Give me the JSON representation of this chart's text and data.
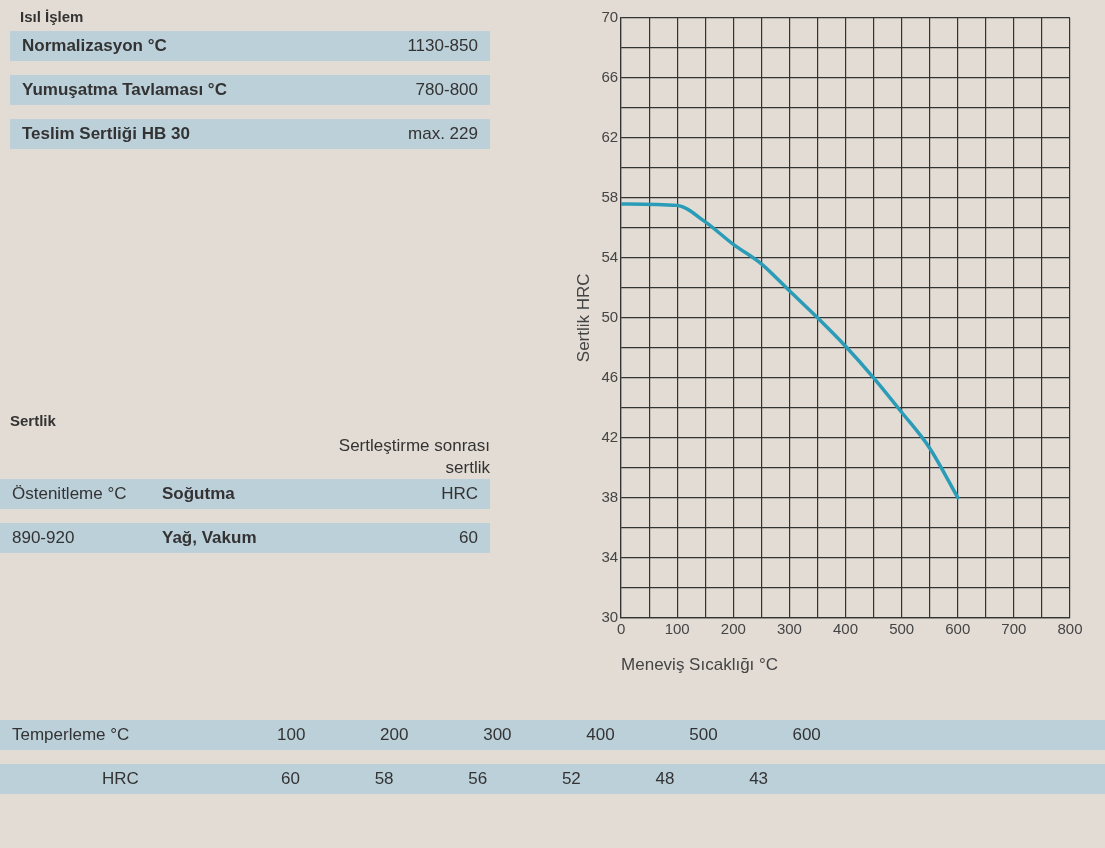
{
  "chart_data": [
    {
      "type": "other",
      "title": "Isıl İşlem",
      "annotations": [
        "Normalizasyon °C",
        "1130-850",
        "Yumuşatma Tavlaması °C",
        "780-800",
        "Teslim Sertliği HB 30",
        "max. 229"
      ]
    },
    {
      "type": "line",
      "xlabel": "Meneviş Sıcaklığı °C",
      "ylabel": "Sertlik HRC",
      "x": [
        0,
        100,
        150,
        200,
        250,
        300,
        350,
        400,
        450,
        500,
        550,
        600
      ],
      "series": [
        {
          "color": "#2b9cb8",
          "values": [
            57.6,
            57.5,
            56.4,
            54.9,
            53.6,
            51.8,
            50,
            48.1,
            46,
            43.7,
            41.3,
            38
          ]
        }
      ],
      "xlim": [
        0,
        800
      ],
      "xticks": [
        0,
        {
          "value": 50,
          "label": null
        },
        100,
        {
          "value": 150,
          "label": null
        },
        200,
        {
          "value": 250,
          "label": null
        },
        300,
        {
          "value": 350,
          "label": null
        },
        400,
        {
          "value": 450,
          "label": null
        },
        500,
        {
          "value": 550,
          "label": null
        },
        600,
        {
          "value": 650,
          "label": null
        },
        700,
        {
          "value": 750,
          "label": null
        },
        800
      ],
      "ylim": [
        30,
        70
      ],
      "yticks": [
        30,
        {
          "value": 32,
          "label": null
        },
        34,
        {
          "value": 36,
          "label": null
        },
        38,
        {
          "value": 40,
          "label": null
        },
        42,
        {
          "value": 44,
          "label": null
        },
        46,
        {
          "value": 48,
          "label": null
        },
        50,
        {
          "value": 52,
          "label": null
        },
        54,
        {
          "value": 56,
          "label": null
        },
        58,
        {
          "value": 60,
          "label": null
        },
        62,
        {
          "value": 64,
          "label": null
        },
        66,
        {
          "value": 68,
          "label": null
        },
        70
      ],
      "grid": true,
      "marker": "none",
      "line_style": "solid",
      "legend": false
    },
    {
      "type": "other",
      "title": "Sertlik",
      "annotations": [
        "Sertleştirme sonrası sertlik",
        "Östenitleme °C",
        "Soğutma",
        "HRC",
        "890-920",
        "Yağ, Vakum",
        "60"
      ]
    },
    {
      "type": "other",
      "annotations": [
        "Temperleme °C",
        "100 200 300 400 500 600",
        "HRC",
        "60 58 56 52 48 43"
      ]
    }
  ]
}
